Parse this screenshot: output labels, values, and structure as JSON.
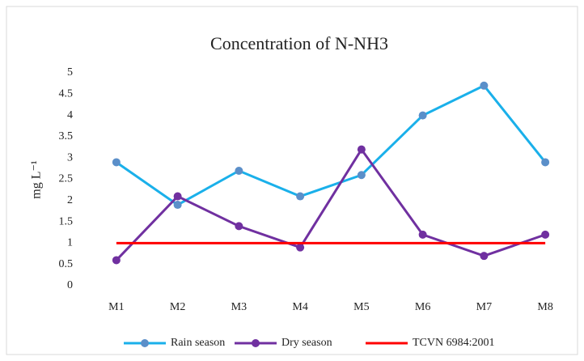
{
  "chart_data": {
    "type": "line",
    "title": "Concentration  of N-NH3",
    "y_label": "mg L⁻¹",
    "categories": [
      "M1",
      "M2",
      "M3",
      "M4",
      "M5",
      "M6",
      "M7",
      "M8"
    ],
    "series": [
      {
        "name": "Rain season",
        "color": "#1ab0ea",
        "marker_color": "#5b8fc9",
        "markers": true,
        "values": [
          2.9,
          1.9,
          2.7,
          2.1,
          2.6,
          4.0,
          4.7,
          2.9
        ]
      },
      {
        "name": "Dry season",
        "color": "#7030a0",
        "marker_color": "#7030a0",
        "markers": true,
        "values": [
          0.6,
          2.1,
          1.4,
          0.9,
          3.2,
          1.2,
          0.7,
          1.2
        ]
      },
      {
        "name": "TCVN 6984:2001",
        "color": "#ff0000",
        "markers": false,
        "values": [
          1,
          1,
          1,
          1,
          1,
          1,
          1,
          1
        ]
      }
    ],
    "ylim": [
      0,
      5
    ],
    "yticks": [
      0,
      0.5,
      1,
      1.5,
      2,
      2.5,
      3,
      3.5,
      4,
      4.5,
      5
    ],
    "grid": false,
    "legend": "bottom"
  }
}
